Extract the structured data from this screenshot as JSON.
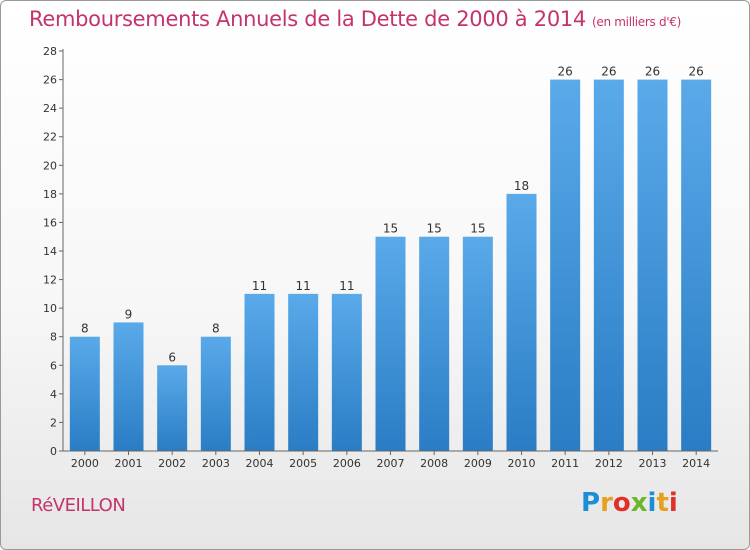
{
  "chart_data": {
    "type": "bar",
    "title": "Remboursements Annuels de la Dette de 2000 à 2014",
    "subtitle": "(en milliers d'€)",
    "categories": [
      "2000",
      "2001",
      "2002",
      "2003",
      "2004",
      "2005",
      "2006",
      "2007",
      "2008",
      "2009",
      "2010",
      "2011",
      "2012",
      "2013",
      "2014"
    ],
    "values": [
      8,
      9,
      6,
      8,
      11,
      11,
      11,
      15,
      15,
      15,
      18,
      26,
      26,
      26,
      26
    ],
    "value_labels": [
      "8",
      "9",
      "6",
      "8",
      "11",
      "11",
      "11",
      "15",
      "15",
      "15",
      "18",
      "26",
      "26",
      "26",
      "26"
    ],
    "y_ticks": [
      "0",
      "2",
      "4",
      "6",
      "8",
      "10",
      "12",
      "14",
      "16",
      "18",
      "20",
      "22",
      "24",
      "26",
      "28"
    ],
    "ylim": [
      0,
      28
    ],
    "y_step": 2,
    "xlabel": "",
    "ylabel": "",
    "grid": false,
    "bar_color_top": "#5aaaea",
    "bar_color_bottom": "#2a7dc4"
  },
  "footer": {
    "commune": "RéVEILLON",
    "brand_letters": [
      "P",
      "r",
      "o",
      "x",
      "i",
      "t",
      "i"
    ],
    "brand_colors": [
      "#1c8ed6",
      "#e8a020",
      "#e0302a",
      "#6cb52d",
      "#1c8ed6",
      "#e8a020",
      "#e0302a"
    ]
  }
}
